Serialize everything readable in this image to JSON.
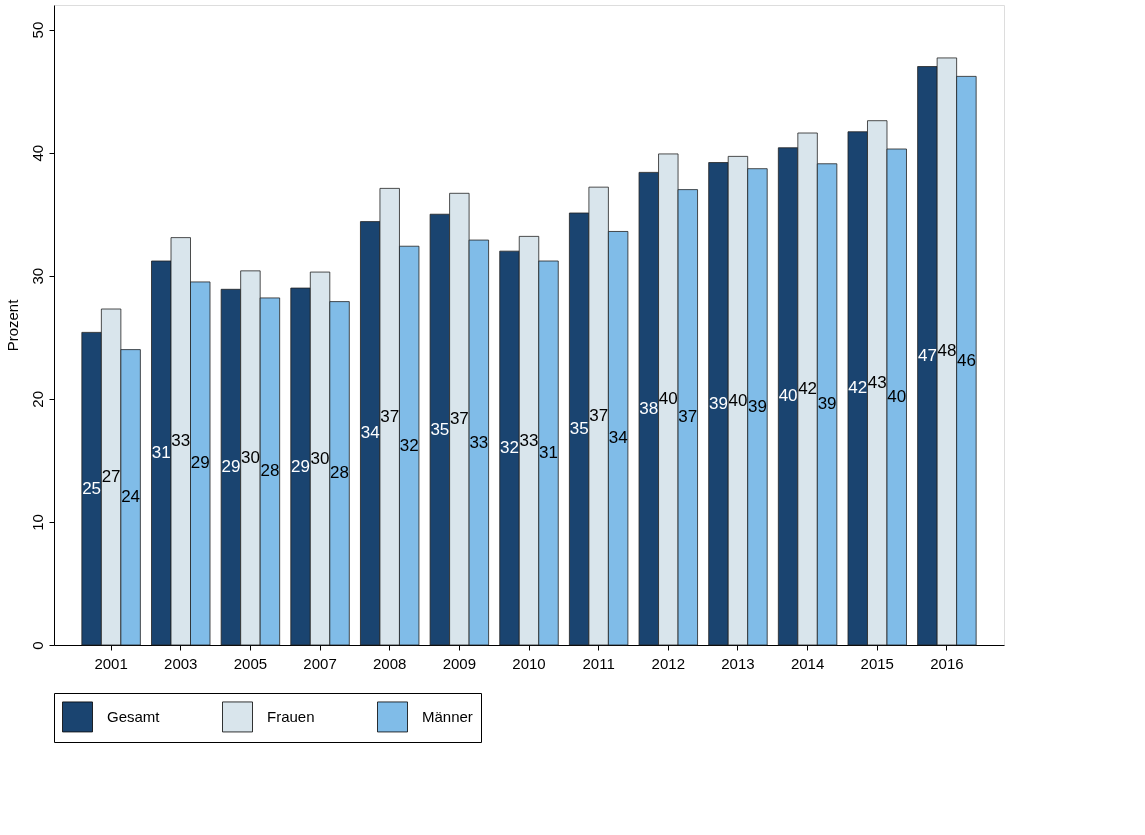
{
  "chart_data": {
    "type": "bar",
    "ylabel": "Prozent",
    "categories": [
      "2001",
      "2003",
      "2005",
      "2007",
      "2008",
      "2009",
      "2010",
      "2011",
      "2012",
      "2013",
      "2014",
      "2015",
      "2016"
    ],
    "series": [
      {
        "name": "Gesamt",
        "color": "#1a4470",
        "values": [
          25.4,
          31.2,
          28.9,
          29.0,
          34.4,
          35.0,
          32.0,
          35.1,
          38.4,
          39.2,
          40.4,
          41.7,
          47.0
        ],
        "value_labels": [
          "25",
          "31",
          "29",
          "29",
          "34",
          "35",
          "32",
          "35",
          "38",
          "39",
          "40",
          "42",
          "47"
        ]
      },
      {
        "name": "Frauen",
        "color": "#d9e5ec",
        "values": [
          27.3,
          33.1,
          30.4,
          30.3,
          37.1,
          36.7,
          33.2,
          37.2,
          39.9,
          39.7,
          41.6,
          42.6,
          47.7
        ],
        "value_labels": [
          "27",
          "33",
          "30",
          "30",
          "37",
          "37",
          "33",
          "37",
          "40",
          "40",
          "42",
          "43",
          "48"
        ]
      },
      {
        "name": "Männer",
        "color": "#80bce8",
        "values": [
          24.0,
          29.5,
          28.2,
          27.9,
          32.4,
          32.9,
          31.2,
          33.6,
          37.0,
          38.7,
          39.1,
          40.3,
          46.2
        ],
        "value_labels": [
          "24",
          "29",
          "28",
          "28",
          "32",
          "33",
          "31",
          "34",
          "37",
          "39",
          "39",
          "40",
          "46"
        ]
      }
    ],
    "ylim": [
      0,
      52
    ],
    "yticks": [
      0,
      10,
      20,
      30,
      40,
      50
    ],
    "grid": false,
    "legend": "bottom"
  }
}
